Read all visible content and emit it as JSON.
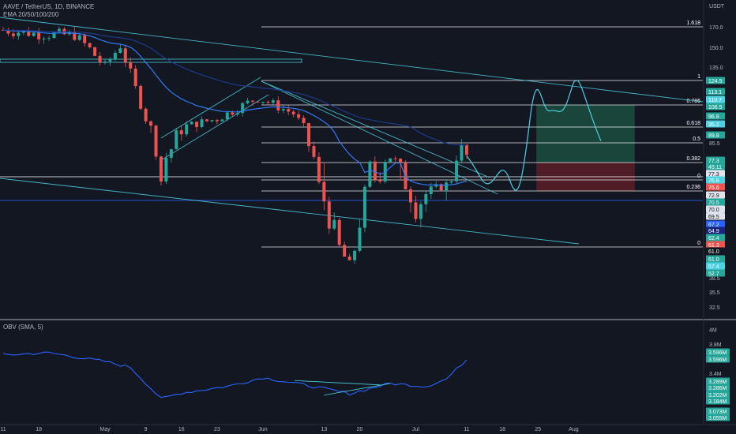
{
  "header": {
    "symbol_line": "AAVE / TetherUS, 1D, BINANCE",
    "ema_line": "EMA 20/50/100/200",
    "obv_line": "OBV (SMA, 5)"
  },
  "colors": {
    "background": "#131722",
    "up": "#26a69a",
    "down": "#ef5350",
    "ema": "#2962ff",
    "trendline": "#4dd0e1",
    "fib": "#ffffff",
    "obv": "#2962ff",
    "target_zone": "#1b4d40",
    "stop_zone": "#5c1e28"
  },
  "chart_data": [
    {
      "type": "candlestick",
      "title": "AAVE / TetherUS, 1D, BINANCE",
      "yaxis_unit": "USDT",
      "y_ticks": [
        "170.0",
        "150.0",
        "135.0",
        "85.5",
        "77.3",
        "70.0",
        "38.5",
        "35.5",
        "32.5"
      ],
      "x_ticks": [
        "11",
        "18",
        "May",
        "9",
        "16",
        "23",
        "Jun",
        "13",
        "20",
        "Jul",
        "11",
        "18",
        "25",
        "Aug"
      ],
      "close_path": [
        {
          "date": "2022-04-11",
          "close": 167
        },
        {
          "date": "2022-04-18",
          "close": 163
        },
        {
          "date": "2022-04-25",
          "close": 162
        },
        {
          "date": "2022-05-01",
          "close": 135
        },
        {
          "date": "2022-05-04",
          "close": 152
        },
        {
          "date": "2022-05-09",
          "close": 96
        },
        {
          "date": "2022-05-12",
          "close": 76
        },
        {
          "date": "2022-05-16",
          "close": 90
        },
        {
          "date": "2022-05-23",
          "close": 96
        },
        {
          "date": "2022-05-31",
          "close": 112
        },
        {
          "date": "2022-06-07",
          "close": 100
        },
        {
          "date": "2022-06-13",
          "close": 69
        },
        {
          "date": "2022-06-18",
          "close": 55
        },
        {
          "date": "2022-06-22",
          "close": 76
        },
        {
          "date": "2022-06-26",
          "close": 80
        },
        {
          "date": "2022-07-01",
          "close": 68
        },
        {
          "date": "2022-07-07",
          "close": 74
        },
        {
          "date": "2022-07-10",
          "close": 83
        },
        {
          "date": "2022-07-11",
          "close": 80
        }
      ],
      "fibonacci_levels": [
        {
          "label": "1.618",
          "price": 170.0
        },
        {
          "label": "1",
          "price": 124.5
        },
        {
          "label": "0.786",
          "price": 106.5
        },
        {
          "label": "0.618",
          "price": 89.8
        },
        {
          "label": "0.5",
          "price": 85.5
        },
        {
          "label": "0.382",
          "price": 77.3
        },
        {
          "label": "0",
          "price": 76.6
        },
        {
          "label": "0.236",
          "price": 70.5
        },
        {
          "label": "0",
          "price": 61.0
        }
      ],
      "price_labels": [
        {
          "text": "124.5",
          "color": "#26a69a"
        },
        {
          "text": "113.1",
          "color": "#26a69a"
        },
        {
          "text": "110.7",
          "color": "#4dd0e1"
        },
        {
          "text": "106.5",
          "color": "#26a69a"
        },
        {
          "text": "96.8",
          "color": "#26a69a"
        },
        {
          "text": "95.2",
          "color": "#4dd0e1"
        },
        {
          "text": "89.8",
          "color": "#26a69a"
        },
        {
          "text": "77.3",
          "color": "#26a69a"
        },
        {
          "text": "45:11",
          "color": "#26a69a"
        },
        {
          "text": "77.3",
          "color": "#e0e3eb"
        },
        {
          "text": "76.8",
          "color": "#4dd0e1"
        },
        {
          "text": "76.6",
          "color": "#ef5350"
        },
        {
          "text": "72.9",
          "color": "#e0e3eb"
        },
        {
          "text": "70.5",
          "color": "#26a69a"
        },
        {
          "text": "70.0",
          "color": "#e0e3eb"
        },
        {
          "text": "69.5",
          "color": "#e0e3eb"
        },
        {
          "text": "67.2",
          "color": "#2962ff"
        },
        {
          "text": "64.9",
          "color": "#1a237e"
        },
        {
          "text": "62.4",
          "color": "#26a69a"
        },
        {
          "text": "61.3",
          "color": "#ef5350"
        },
        {
          "text": "61.0",
          "color": "#131722"
        },
        {
          "text": "61.0",
          "color": "#26a69a"
        },
        {
          "text": "57.4",
          "color": "#4dd0e1"
        },
        {
          "text": "52.7",
          "color": "#26a69a"
        }
      ]
    },
    {
      "type": "line",
      "title": "OBV (SMA, 5)",
      "y_ticks": [
        "4M",
        "3.8M",
        "3.4M"
      ],
      "series": [
        {
          "values": [
            {
              "date": "2022-04-11",
              "obv": 3.65
            },
            {
              "date": "2022-04-20",
              "obv": 3.68
            },
            {
              "date": "2022-05-01",
              "obv": 3.56
            },
            {
              "date": "2022-05-06",
              "obv": 3.48
            },
            {
              "date": "2022-05-12",
              "obv": 3.05
            },
            {
              "date": "2022-05-16",
              "obv": 3.13
            },
            {
              "date": "2022-05-25",
              "obv": 3.22
            },
            {
              "date": "2022-06-01",
              "obv": 3.34
            },
            {
              "date": "2022-06-10",
              "obv": 3.23
            },
            {
              "date": "2022-06-18",
              "obv": 3.12
            },
            {
              "date": "2022-06-26",
              "obv": 3.26
            },
            {
              "date": "2022-07-03",
              "obv": 3.22
            },
            {
              "date": "2022-07-07",
              "obv": 3.32
            },
            {
              "date": "2022-07-11",
              "obv": 3.59
            }
          ]
        }
      ],
      "price_labels": [
        {
          "text": "3.596M",
          "color": "#26a69a"
        },
        {
          "text": "3.596M",
          "color": "#26a69a"
        },
        {
          "text": "3.289M",
          "color": "#26a69a"
        },
        {
          "text": "3.286M",
          "color": "#26a69a"
        },
        {
          "text": "3.202M",
          "color": "#26a69a"
        },
        {
          "text": "3.184M",
          "color": "#26a69a"
        },
        {
          "text": "3.073M",
          "color": "#26a69a"
        },
        {
          "text": "3.055M",
          "color": "#26a69a"
        }
      ]
    }
  ]
}
